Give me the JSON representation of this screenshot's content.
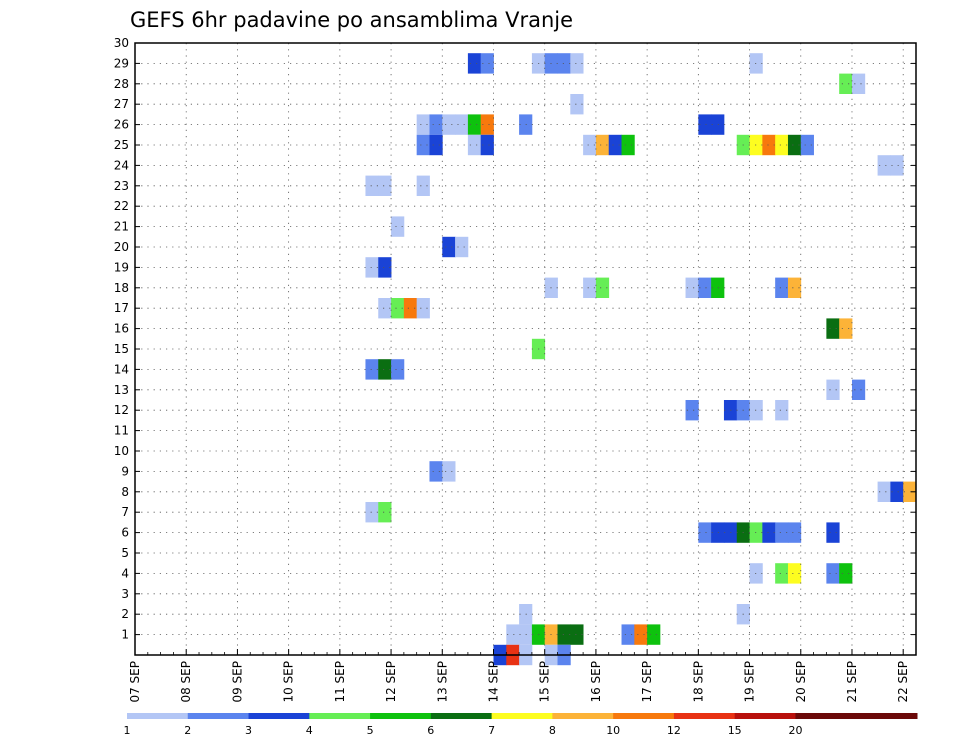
{
  "chart_data": {
    "type": "heatmap",
    "title": "GEFS 6hr padavine po ansamblima Vranje",
    "xlabel": "",
    "ylabel": "",
    "x_ticks": [
      "07 SEP",
      "08 SEP",
      "09 SEP",
      "10 SEP",
      "11 SEP",
      "12 SEP",
      "13 SEP",
      "14 SEP",
      "15 SEP",
      "16 SEP",
      "17 SEP",
      "18 SEP",
      "19 SEP",
      "20 SEP",
      "21 SEP",
      "22 SEP"
    ],
    "x_range": [
      "07 SEP 00",
      "22 SEP 06"
    ],
    "y_ticks": [
      1,
      2,
      3,
      4,
      5,
      6,
      7,
      8,
      9,
      10,
      11,
      12,
      13,
      14,
      15,
      16,
      17,
      18,
      19,
      20,
      21,
      22,
      23,
      24,
      25,
      26,
      27,
      28,
      29,
      30
    ],
    "ylim": [
      0,
      30
    ],
    "grid": true,
    "color_levels": [
      {
        "label": "1",
        "color": "#b3c6f5"
      },
      {
        "label": "2",
        "color": "#5b84ee"
      },
      {
        "label": "3",
        "color": "#1a43d6"
      },
      {
        "label": "4",
        "color": "#66ee55"
      },
      {
        "label": "5",
        "color": "#0ec20e"
      },
      {
        "label": "6",
        "color": "#0a6e12"
      },
      {
        "label": "7",
        "color": "#fdfd20"
      },
      {
        "label": "8",
        "color": "#fcb338"
      },
      {
        "label": "10",
        "color": "#f7790d"
      },
      {
        "label": "12",
        "color": "#e83214"
      },
      {
        "label": "15",
        "color": "#b8100c"
      },
      {
        "label": "20",
        "color": "#6b0808"
      },
      {
        "label": "",
        "color": "#6b0808"
      }
    ],
    "cells": [
      {
        "t": "13 SEP 12",
        "member": 29,
        "level": 3
      },
      {
        "t": "13 SEP 18",
        "member": 29,
        "level": 2
      },
      {
        "t": "14 SEP 18",
        "member": 29,
        "level": 1
      },
      {
        "t": "15 SEP 00",
        "member": 29,
        "level": 2
      },
      {
        "t": "15 SEP 06",
        "member": 29,
        "level": 2
      },
      {
        "t": "15 SEP 12",
        "member": 29,
        "level": 1
      },
      {
        "t": "19 SEP 00",
        "member": 29,
        "level": 1
      },
      {
        "t": "20 SEP 18",
        "member": 28,
        "level": 4
      },
      {
        "t": "21 SEP 00",
        "member": 28,
        "level": 1
      },
      {
        "t": "15 SEP 12",
        "member": 27,
        "level": 1
      },
      {
        "t": "12 SEP 12",
        "member": 26,
        "level": 1
      },
      {
        "t": "12 SEP 18",
        "member": 26,
        "level": 2
      },
      {
        "t": "13 SEP 00",
        "member": 26,
        "level": 1
      },
      {
        "t": "13 SEP 06",
        "member": 26,
        "level": 1
      },
      {
        "t": "13 SEP 12",
        "member": 26,
        "level": 5
      },
      {
        "t": "13 SEP 18",
        "member": 26,
        "level": 10
      },
      {
        "t": "14 SEP 12",
        "member": 26,
        "level": 2
      },
      {
        "t": "18 SEP 00",
        "member": 26,
        "level": 3
      },
      {
        "t": "18 SEP 06",
        "member": 26,
        "level": 3
      },
      {
        "t": "12 SEP 12",
        "member": 25,
        "level": 2
      },
      {
        "t": "12 SEP 18",
        "member": 25,
        "level": 3
      },
      {
        "t": "13 SEP 12",
        "member": 25,
        "level": 1
      },
      {
        "t": "13 SEP 18",
        "member": 25,
        "level": 3
      },
      {
        "t": "15 SEP 18",
        "member": 25,
        "level": 1
      },
      {
        "t": "16 SEP 00",
        "member": 25,
        "level": 8
      },
      {
        "t": "16 SEP 06",
        "member": 25,
        "level": 3
      },
      {
        "t": "16 SEP 12",
        "member": 25,
        "level": 5
      },
      {
        "t": "18 SEP 18",
        "member": 25,
        "level": 4
      },
      {
        "t": "19 SEP 00",
        "member": 25,
        "level": 7
      },
      {
        "t": "19 SEP 06",
        "member": 25,
        "level": 10
      },
      {
        "t": "19 SEP 12",
        "member": 25,
        "level": 7
      },
      {
        "t": "19 SEP 18",
        "member": 25,
        "level": 6
      },
      {
        "t": "20 SEP 00",
        "member": 25,
        "level": 2
      },
      {
        "t": "21 SEP 12",
        "member": 24,
        "level": 1
      },
      {
        "t": "21 SEP 18",
        "member": 24,
        "level": 1
      },
      {
        "t": "11 SEP 12",
        "member": 23,
        "level": 1
      },
      {
        "t": "11 SEP 18",
        "member": 23,
        "level": 1
      },
      {
        "t": "12 SEP 12",
        "member": 23,
        "level": 1
      },
      {
        "t": "12 SEP 00",
        "member": 21,
        "level": 1
      },
      {
        "t": "13 SEP 00",
        "member": 20,
        "level": 3
      },
      {
        "t": "13 SEP 06",
        "member": 20,
        "level": 1
      },
      {
        "t": "11 SEP 12",
        "member": 19,
        "level": 1
      },
      {
        "t": "11 SEP 18",
        "member": 19,
        "level": 3
      },
      {
        "t": "15 SEP 00",
        "member": 18,
        "level": 1
      },
      {
        "t": "15 SEP 18",
        "member": 18,
        "level": 1
      },
      {
        "t": "16 SEP 00",
        "member": 18,
        "level": 4
      },
      {
        "t": "17 SEP 18",
        "member": 18,
        "level": 1
      },
      {
        "t": "18 SEP 00",
        "member": 18,
        "level": 2
      },
      {
        "t": "18 SEP 06",
        "member": 18,
        "level": 5
      },
      {
        "t": "19 SEP 12",
        "member": 18,
        "level": 2
      },
      {
        "t": "19 SEP 18",
        "member": 18,
        "level": 8
      },
      {
        "t": "11 SEP 18",
        "member": 17,
        "level": 1
      },
      {
        "t": "12 SEP 00",
        "member": 17,
        "level": 4
      },
      {
        "t": "12 SEP 06",
        "member": 17,
        "level": 10
      },
      {
        "t": "12 SEP 12",
        "member": 17,
        "level": 1
      },
      {
        "t": "20 SEP 12",
        "member": 16,
        "level": 6
      },
      {
        "t": "20 SEP 18",
        "member": 16,
        "level": 8
      },
      {
        "t": "14 SEP 18",
        "member": 15,
        "level": 4
      },
      {
        "t": "11 SEP 12",
        "member": 14,
        "level": 2
      },
      {
        "t": "11 SEP 18",
        "member": 14,
        "level": 6
      },
      {
        "t": "12 SEP 00",
        "member": 14,
        "level": 2
      },
      {
        "t": "20 SEP 12",
        "member": 13,
        "level": 1
      },
      {
        "t": "21 SEP 00",
        "member": 13,
        "level": 2
      },
      {
        "t": "17 SEP 18",
        "member": 12,
        "level": 2
      },
      {
        "t": "18 SEP 12",
        "member": 12,
        "level": 3
      },
      {
        "t": "18 SEP 18",
        "member": 12,
        "level": 2
      },
      {
        "t": "19 SEP 00",
        "member": 12,
        "level": 1
      },
      {
        "t": "19 SEP 12",
        "member": 12,
        "level": 1
      },
      {
        "t": "12 SEP 18",
        "member": 9,
        "level": 2
      },
      {
        "t": "13 SEP 00",
        "member": 9,
        "level": 1
      },
      {
        "t": "21 SEP 12",
        "member": 8,
        "level": 1
      },
      {
        "t": "21 SEP 18",
        "member": 8,
        "level": 3
      },
      {
        "t": "22 SEP 00",
        "member": 8,
        "level": 8
      },
      {
        "t": "11 SEP 12",
        "member": 7,
        "level": 1
      },
      {
        "t": "11 SEP 18",
        "member": 7,
        "level": 4
      },
      {
        "t": "18 SEP 00",
        "member": 6,
        "level": 2
      },
      {
        "t": "18 SEP 06",
        "member": 6,
        "level": 3
      },
      {
        "t": "18 SEP 12",
        "member": 6,
        "level": 3
      },
      {
        "t": "18 SEP 18",
        "member": 6,
        "level": 6
      },
      {
        "t": "19 SEP 00",
        "member": 6,
        "level": 4
      },
      {
        "t": "19 SEP 06",
        "member": 6,
        "level": 3
      },
      {
        "t": "19 SEP 12",
        "member": 6,
        "level": 2
      },
      {
        "t": "19 SEP 18",
        "member": 6,
        "level": 2
      },
      {
        "t": "20 SEP 12",
        "member": 6,
        "level": 3
      },
      {
        "t": "19 SEP 00",
        "member": 4,
        "level": 1
      },
      {
        "t": "19 SEP 12",
        "member": 4,
        "level": 4
      },
      {
        "t": "19 SEP 18",
        "member": 4,
        "level": 7
      },
      {
        "t": "20 SEP 12",
        "member": 4,
        "level": 2
      },
      {
        "t": "20 SEP 18",
        "member": 4,
        "level": 5
      },
      {
        "t": "14 SEP 12",
        "member": 2,
        "level": 1
      },
      {
        "t": "18 SEP 18",
        "member": 2,
        "level": 1
      },
      {
        "t": "14 SEP 06",
        "member": 1,
        "level": 1
      },
      {
        "t": "14 SEP 12",
        "member": 1,
        "level": 1
      },
      {
        "t": "14 SEP 18",
        "member": 1,
        "level": 5
      },
      {
        "t": "15 SEP 00",
        "member": 1,
        "level": 8
      },
      {
        "t": "15 SEP 06",
        "member": 1,
        "level": 6
      },
      {
        "t": "15 SEP 12",
        "member": 1,
        "level": 6
      },
      {
        "t": "16 SEP 12",
        "member": 1,
        "level": 2
      },
      {
        "t": "16 SEP 18",
        "member": 1,
        "level": 10
      },
      {
        "t": "17 SEP 00",
        "member": 1,
        "level": 5
      },
      {
        "t": "14 SEP 00",
        "member": 0,
        "level": 3
      },
      {
        "t": "14 SEP 06",
        "member": 0,
        "level": 12
      },
      {
        "t": "14 SEP 12",
        "member": 0,
        "level": 1
      },
      {
        "t": "15 SEP 00",
        "member": 0,
        "level": 1
      },
      {
        "t": "15 SEP 06",
        "member": 0,
        "level": 2
      }
    ]
  }
}
